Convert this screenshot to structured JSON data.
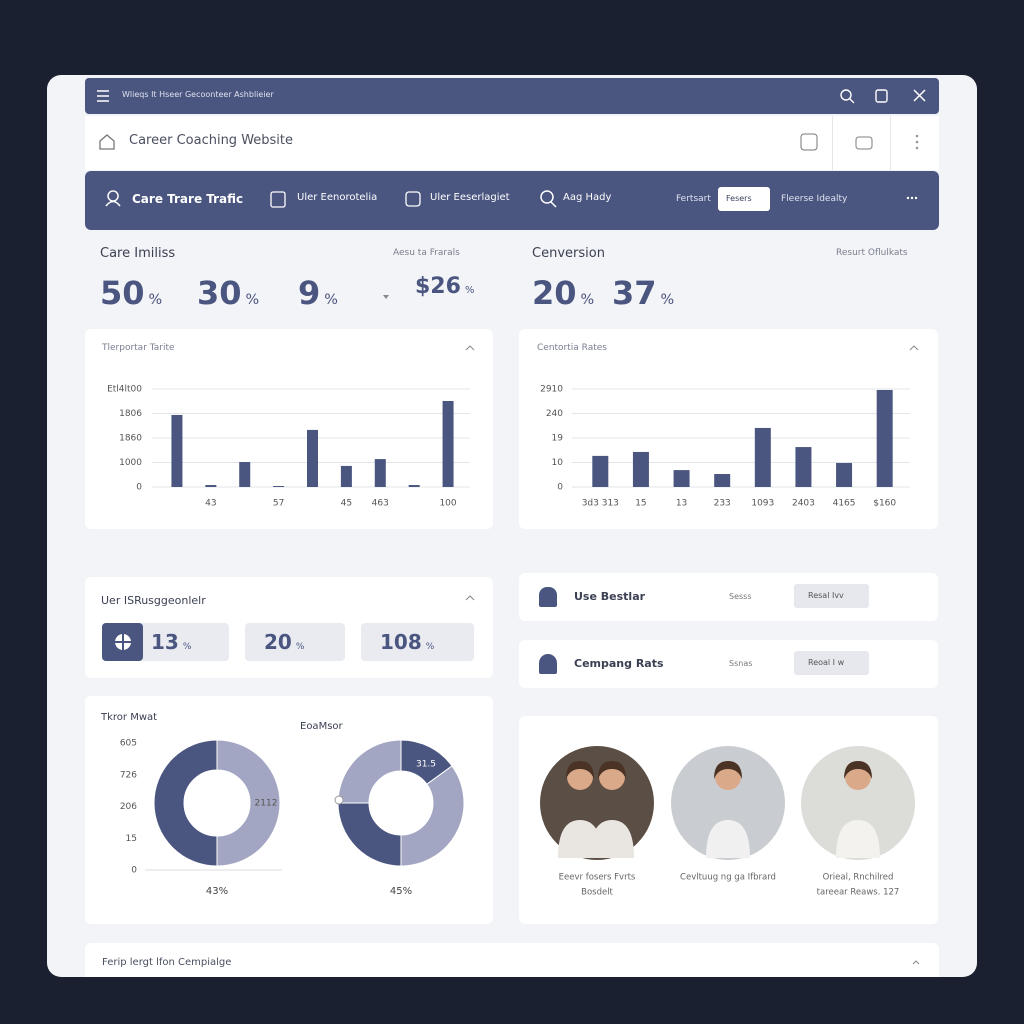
{
  "window": {
    "address": "Wlieqs It Hseer Gecoonteer Ashblieier"
  },
  "header": {
    "title": "Career Coaching Website"
  },
  "nav": {
    "tabs": [
      "Care Trare Trafic",
      "Uler Eenorotelia",
      "Uler Eeserlagiet",
      "Aag Hady"
    ],
    "filter_label": "Fertsart",
    "filter_value": "Fesers",
    "link": "Fleerse Idealty"
  },
  "overview": {
    "title": "Care Imiliss",
    "control": "Aesu ta Frarals",
    "stats": [
      {
        "value": 50,
        "unit": "%"
      },
      {
        "value": 30,
        "unit": "%"
      },
      {
        "value": 9,
        "unit": "%"
      },
      {
        "value": "$26",
        "unit": "%"
      }
    ]
  },
  "conversion": {
    "title": "Cenversion",
    "control": "Resurt Oflulkats",
    "stats": [
      {
        "value": 20,
        "unit": "%"
      },
      {
        "value": 37,
        "unit": "%"
      }
    ]
  },
  "charts": [
    {
      "type": "bar",
      "title": "Tlerportar Tarite",
      "color": "#4a5580",
      "ylim": [
        0,
        4
      ],
      "yticks": [
        0,
        {
          "value": 1,
          "label": "1000"
        },
        {
          "value": 2,
          "label": "1860"
        },
        {
          "value": 3,
          "label": "1806"
        },
        {
          "value": 4,
          "label": "Etl4lt00"
        }
      ],
      "categories": [
        null,
        "43",
        null,
        "57",
        null,
        "45",
        "463",
        null,
        "100"
      ],
      "values": [
        2.94,
        0.08,
        1.02,
        0.04,
        2.33,
        0.86,
        1.14,
        0.08,
        3.51
      ]
    },
    {
      "type": "bar",
      "title": "Centortia Rates",
      "color": "#4a5580",
      "ylim": [
        0,
        4
      ],
      "yticks": [
        0,
        {
          "value": 1,
          "label": "10"
        },
        {
          "value": 2,
          "label": "19"
        },
        {
          "value": 3,
          "label": "240"
        },
        {
          "value": 4,
          "label": "2910"
        }
      ],
      "categories": [
        "3d3 313",
        "15",
        "13",
        "233",
        "1093",
        "2403",
        "4165",
        "$160"
      ],
      "values": [
        1.27,
        1.43,
        0.69,
        0.53,
        2.41,
        1.63,
        0.98,
        3.96
      ]
    }
  ],
  "engagement": {
    "title": "Uer ISRusggeonlelr",
    "stats": [
      {
        "value": 13,
        "unit": "%"
      },
      {
        "value": 20,
        "unit": "%"
      },
      {
        "value": 108,
        "unit": "%"
      }
    ]
  },
  "lists": [
    {
      "title": "Use Bestlar",
      "select": "Sesss",
      "button": "Resal Ivv"
    },
    {
      "title": "Cempang Rats",
      "select": "Ssnas",
      "button": "Reoal I w"
    }
  ],
  "donuts": [
    {
      "title": "Tkror Mwat",
      "scale": [
        "605",
        "726",
        "206",
        "15",
        "0"
      ],
      "values": [
        50,
        50
      ],
      "colors": [
        "#a3a6c2",
        "#4a5580"
      ],
      "annotation": "2112",
      "caption": "43%"
    },
    {
      "title": "EoaMsor",
      "values": [
        15,
        35,
        25,
        25
      ],
      "colors": [
        "#4a5580",
        "#a3a6c2",
        "#4a5580",
        "#a3a6c2"
      ],
      "annotation": "31.5",
      "caption": "45%"
    }
  ],
  "people": [
    {
      "caption": [
        "Eeevr fosers Fvrts",
        "Bosdelt"
      ]
    },
    {
      "caption": [
        "Cevltuug ng ga Ifbrard"
      ]
    },
    {
      "caption": [
        "Orieal, Rnchilred",
        "tareear Reaws. 127"
      ]
    }
  ],
  "footer_card": {
    "title": "Ferip lergt lfon Cempialge"
  }
}
